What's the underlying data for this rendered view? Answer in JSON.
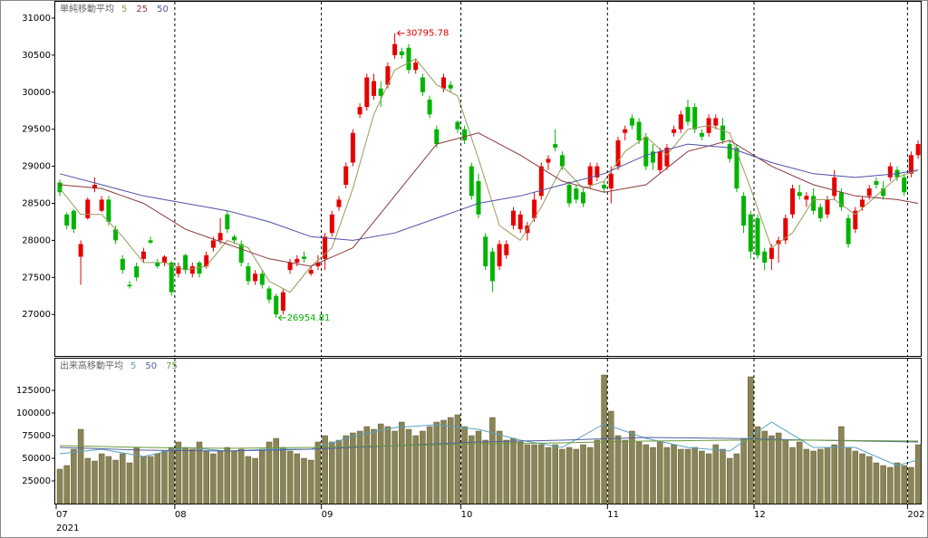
{
  "chart_data": [
    {
      "type": "candlestick",
      "legend_title": "単純移動平均",
      "up_color": "#e60000",
      "down_color": "#00b400",
      "ylim": [
        26440,
        31220
      ],
      "yticks": [
        27000,
        27500,
        28000,
        28500,
        29000,
        29500,
        30000,
        30500,
        31000
      ],
      "open": [
        28780,
        28350,
        28400,
        27780,
        28300,
        28700,
        28400,
        28550,
        28150,
        27750,
        27400,
        27650,
        27750,
        28000,
        27700,
        27700,
        27700,
        27550,
        27800,
        27550,
        27700,
        27650,
        27900,
        28000,
        28350,
        28050,
        27950,
        27650,
        27450,
        27550,
        27350,
        27250,
        27050,
        27600,
        27700,
        27780,
        27550,
        27650,
        27750,
        28100,
        28450,
        28750,
        29050,
        29700,
        29800,
        29950,
        30050,
        30100,
        30500,
        30550,
        30600,
        30300,
        30200,
        29900,
        29500,
        30050,
        30100,
        29600,
        29500,
        29000,
        28800,
        28050,
        27850,
        27650,
        27800,
        28200,
        28150,
        28100,
        28300,
        28600,
        29050,
        29300,
        29150,
        28750,
        28700,
        28650,
        28750,
        28850,
        28750,
        28700,
        29000,
        29450,
        29650,
        29600,
        29400,
        29200,
        28950,
        29000,
        29450,
        29500,
        29800,
        29800,
        29450,
        29450,
        29550,
        29550,
        29300,
        29250,
        28600,
        28350,
        28300,
        27850,
        27750,
        27950,
        28000,
        28350,
        28650,
        28550,
        28600,
        28450,
        28350,
        28600,
        28650,
        28300,
        28150,
        28450,
        28600,
        28800,
        28700,
        28850,
        28950,
        28850,
        28900,
        29150
      ],
      "high": [
        28820,
        28380,
        28420,
        28000,
        28580,
        28850,
        28600,
        28600,
        28200,
        27800,
        27450,
        27700,
        27900,
        28050,
        27750,
        27800,
        27720,
        27700,
        27820,
        27700,
        27720,
        27850,
        28050,
        28300,
        28400,
        28080,
        28000,
        27700,
        27600,
        27600,
        27380,
        27280,
        27350,
        27750,
        27800,
        27850,
        27650,
        27800,
        28100,
        28400,
        28600,
        29050,
        29500,
        29850,
        30250,
        30250,
        30150,
        30400,
        30795.78,
        30600,
        30650,
        30450,
        30250,
        29950,
        29550,
        30250,
        30150,
        29620,
        29550,
        29050,
        28900,
        28100,
        27900,
        28000,
        28000,
        28450,
        28400,
        28250,
        28650,
        29050,
        29150,
        29500,
        29200,
        28800,
        28750,
        28700,
        29050,
        29050,
        28800,
        29000,
        29400,
        29550,
        29700,
        29650,
        29450,
        29300,
        29250,
        29300,
        29550,
        29750,
        29900,
        29850,
        29500,
        29700,
        29700,
        29650,
        29350,
        29300,
        28650,
        28400,
        28350,
        27900,
        27950,
        28050,
        28350,
        28750,
        28750,
        28650,
        28700,
        28500,
        28600,
        28950,
        28700,
        28350,
        28450,
        28600,
        28750,
        28850,
        28800,
        29050,
        29000,
        28900,
        29200,
        29350
      ],
      "low": [
        28600,
        28150,
        28100,
        27400,
        28280,
        28650,
        28380,
        28200,
        27950,
        27550,
        27350,
        27450,
        27700,
        27950,
        27620,
        27650,
        27250,
        27500,
        27550,
        27500,
        27500,
        27620,
        27850,
        27950,
        28100,
        27950,
        27650,
        27400,
        27400,
        27350,
        27150,
        26954.81,
        27000,
        27550,
        27650,
        27700,
        27520,
        27600,
        27600,
        28050,
        28400,
        28700,
        29000,
        29650,
        29750,
        29900,
        29800,
        30050,
        30450,
        30450,
        30250,
        30250,
        29950,
        29650,
        29250,
        30000,
        30000,
        29450,
        29300,
        28550,
        28300,
        27600,
        27300,
        27600,
        27750,
        28150,
        28100,
        28000,
        28250,
        28550,
        28950,
        29200,
        28950,
        28450,
        28500,
        28450,
        28700,
        28800,
        28650,
        28500,
        28950,
        29350,
        29500,
        29300,
        28950,
        28950,
        28900,
        28950,
        29400,
        29450,
        29550,
        29450,
        29350,
        29400,
        29500,
        29300,
        29050,
        28650,
        28100,
        27750,
        27750,
        27600,
        27600,
        27700,
        27950,
        28300,
        28550,
        28450,
        28350,
        28250,
        28300,
        28550,
        28400,
        27900,
        28100,
        28400,
        28550,
        28700,
        28550,
        28800,
        28800,
        28600,
        28850,
        29100
      ],
      "close": [
        28650,
        28200,
        28150,
        27950,
        28550,
        28750,
        28550,
        28250,
        28000,
        27600,
        27380,
        27500,
        27850,
        27970,
        27650,
        27780,
        27300,
        27650,
        27600,
        27650,
        27550,
        27800,
        28000,
        28100,
        28150,
        28000,
        27700,
        27450,
        27550,
        27400,
        27200,
        27000,
        27300,
        27700,
        27750,
        27750,
        27600,
        27700,
        28050,
        28350,
        28550,
        29000,
        29450,
        29800,
        30200,
        30150,
        29950,
        30350,
        30650,
        30500,
        30300,
        30400,
        30000,
        29700,
        29300,
        30200,
        30050,
        29500,
        29350,
        28600,
        28350,
        27650,
        27450,
        27950,
        27950,
        28400,
        28350,
        28200,
        28550,
        29000,
        29100,
        29250,
        29000,
        28500,
        28550,
        28500,
        29000,
        29000,
        28700,
        28900,
        29350,
        29500,
        29550,
        29350,
        29000,
        29050,
        29200,
        29250,
        29500,
        29700,
        29600,
        29500,
        29400,
        29650,
        29650,
        29350,
        29100,
        28700,
        28200,
        27850,
        27800,
        27700,
        27900,
        28000,
        28300,
        28700,
        28600,
        28600,
        28400,
        28300,
        28550,
        28850,
        28450,
        27950,
        28400,
        28550,
        28700,
        28750,
        28600,
        29000,
        28850,
        28650,
        29150,
        29300
      ],
      "ma_series": [
        {
          "name": "5",
          "color": "#9a9a5a",
          "x": [
            0,
            3,
            6,
            9,
            12,
            15,
            18,
            21,
            24,
            27,
            30,
            33,
            36,
            39,
            42,
            45,
            48,
            51,
            54,
            57,
            60,
            63,
            66,
            69,
            72,
            75,
            78,
            81,
            84,
            87,
            90,
            93,
            96,
            99,
            102,
            105,
            108,
            111,
            114,
            117,
            120,
            123
          ],
          "values": [
            28700,
            28350,
            28350,
            28050,
            27700,
            27700,
            27600,
            27650,
            28000,
            27900,
            27450,
            27300,
            27650,
            27900,
            28700,
            29700,
            30300,
            30450,
            30100,
            29950,
            29100,
            28200,
            28000,
            28450,
            29000,
            28700,
            28800,
            29200,
            29400,
            29150,
            29500,
            29550,
            29450,
            28700,
            27900,
            28100,
            28550,
            28550,
            28350,
            28600,
            28850,
            28950
          ]
        },
        {
          "name": "25",
          "color": "#8b3a3a",
          "x": [
            0,
            6,
            12,
            18,
            24,
            30,
            36,
            42,
            48,
            54,
            60,
            66,
            72,
            78,
            84,
            90,
            96,
            102,
            108,
            114,
            120,
            123
          ],
          "values": [
            28750,
            28700,
            28500,
            28150,
            27950,
            27750,
            27650,
            27900,
            28600,
            29300,
            29450,
            29150,
            28800,
            28650,
            28750,
            29200,
            29350,
            29000,
            28750,
            28600,
            28550,
            28500
          ]
        },
        {
          "name": "50",
          "color": "#5050a8",
          "x": [
            0,
            6,
            12,
            18,
            24,
            30,
            36,
            42,
            48,
            54,
            60,
            66,
            72,
            78,
            84,
            90,
            96,
            102,
            108,
            114,
            120,
            123
          ],
          "values": [
            28900,
            28750,
            28600,
            28500,
            28400,
            28250,
            28050,
            28000,
            28100,
            28300,
            28500,
            28600,
            28750,
            28900,
            29150,
            29300,
            29250,
            29050,
            28900,
            28850,
            28900,
            28950
          ]
        }
      ]
    },
    {
      "type": "bar",
      "legend_title": "出来高移動平均",
      "color": "#8b8456",
      "year_label": "2021",
      "categories": [
        "07",
        null,
        null,
        null,
        null,
        null,
        null,
        null,
        null,
        null,
        null,
        null,
        null,
        null,
        null,
        null,
        null,
        "08",
        null,
        null,
        null,
        null,
        null,
        null,
        null,
        null,
        null,
        null,
        null,
        null,
        null,
        null,
        null,
        null,
        null,
        null,
        null,
        null,
        "09",
        null,
        null,
        null,
        null,
        null,
        null,
        null,
        null,
        null,
        null,
        null,
        null,
        null,
        null,
        null,
        null,
        null,
        null,
        null,
        "10",
        null,
        null,
        null,
        null,
        null,
        null,
        null,
        null,
        null,
        null,
        null,
        null,
        null,
        null,
        null,
        null,
        null,
        null,
        null,
        null,
        "11",
        null,
        null,
        null,
        null,
        null,
        null,
        null,
        null,
        null,
        null,
        null,
        null,
        null,
        null,
        null,
        null,
        null,
        null,
        null,
        null,
        "12",
        null,
        null,
        null,
        null,
        null,
        null,
        null,
        null,
        null,
        null,
        null,
        null,
        null,
        null,
        null,
        null,
        null,
        null,
        null,
        null,
        null,
        "202",
        null
      ],
      "ylim": [
        0,
        160000
      ],
      "yticks": [
        25000,
        50000,
        75000,
        100000,
        125000
      ],
      "values": [
        38000,
        42000,
        60000,
        82000,
        50000,
        47000,
        55000,
        52000,
        48000,
        55000,
        45000,
        62000,
        52000,
        52000,
        55000,
        58000,
        62000,
        68000,
        62000,
        60000,
        68000,
        58000,
        55000,
        58000,
        62000,
        58000,
        60000,
        52000,
        50000,
        60000,
        68000,
        72000,
        62000,
        58000,
        55000,
        50000,
        48000,
        68000,
        75000,
        68000,
        70000,
        75000,
        78000,
        80000,
        85000,
        82000,
        88000,
        85000,
        80000,
        90000,
        82000,
        75000,
        80000,
        85000,
        90000,
        92000,
        95000,
        98000,
        85000,
        75000,
        80000,
        70000,
        95000,
        80000,
        70000,
        72000,
        68000,
        65000,
        65000,
        65000,
        62000,
        65000,
        60000,
        62000,
        60000,
        65000,
        62000,
        70000,
        142000,
        102000,
        75000,
        70000,
        80000,
        68000,
        65000,
        62000,
        68000,
        62000,
        65000,
        60000,
        60000,
        62000,
        58000,
        55000,
        65000,
        60000,
        50000,
        55000,
        72000,
        140000,
        85000,
        80000,
        75000,
        78000,
        70000,
        62000,
        68000,
        60000,
        58000,
        60000,
        62000,
        65000,
        85000,
        62000,
        58000,
        55000,
        52000,
        45000,
        42000,
        40000,
        45000,
        42000,
        40000,
        65000
      ],
      "ma_series": [
        {
          "name": "5",
          "color": "#5aa0c0",
          "x": [
            0,
            6,
            12,
            18,
            24,
            30,
            36,
            42,
            48,
            54,
            60,
            66,
            72,
            78,
            84,
            90,
            96,
            102,
            108,
            114,
            120,
            123
          ],
          "values": [
            55000,
            60000,
            52000,
            62000,
            58000,
            60000,
            60000,
            74000,
            84000,
            87000,
            82000,
            70000,
            62000,
            88000,
            72000,
            62000,
            58000,
            90000,
            62000,
            62000,
            42000,
            48000
          ]
        },
        {
          "name": "50",
          "color": "#5060a0",
          "x": [
            0,
            12,
            24,
            36,
            48,
            60,
            72,
            84,
            96,
            108,
            123
          ],
          "values": [
            62000,
            59000,
            58000,
            60000,
            64000,
            68000,
            70000,
            73000,
            72000,
            70000,
            68000
          ]
        },
        {
          "name": "75",
          "color": "#6a9a3a",
          "x": [
            0,
            12,
            24,
            36,
            48,
            60,
            72,
            84,
            96,
            108,
            123
          ],
          "values": [
            64000,
            62000,
            61000,
            62000,
            64000,
            66000,
            67000,
            69000,
            70000,
            70000,
            69000
          ]
        }
      ]
    }
  ]
}
